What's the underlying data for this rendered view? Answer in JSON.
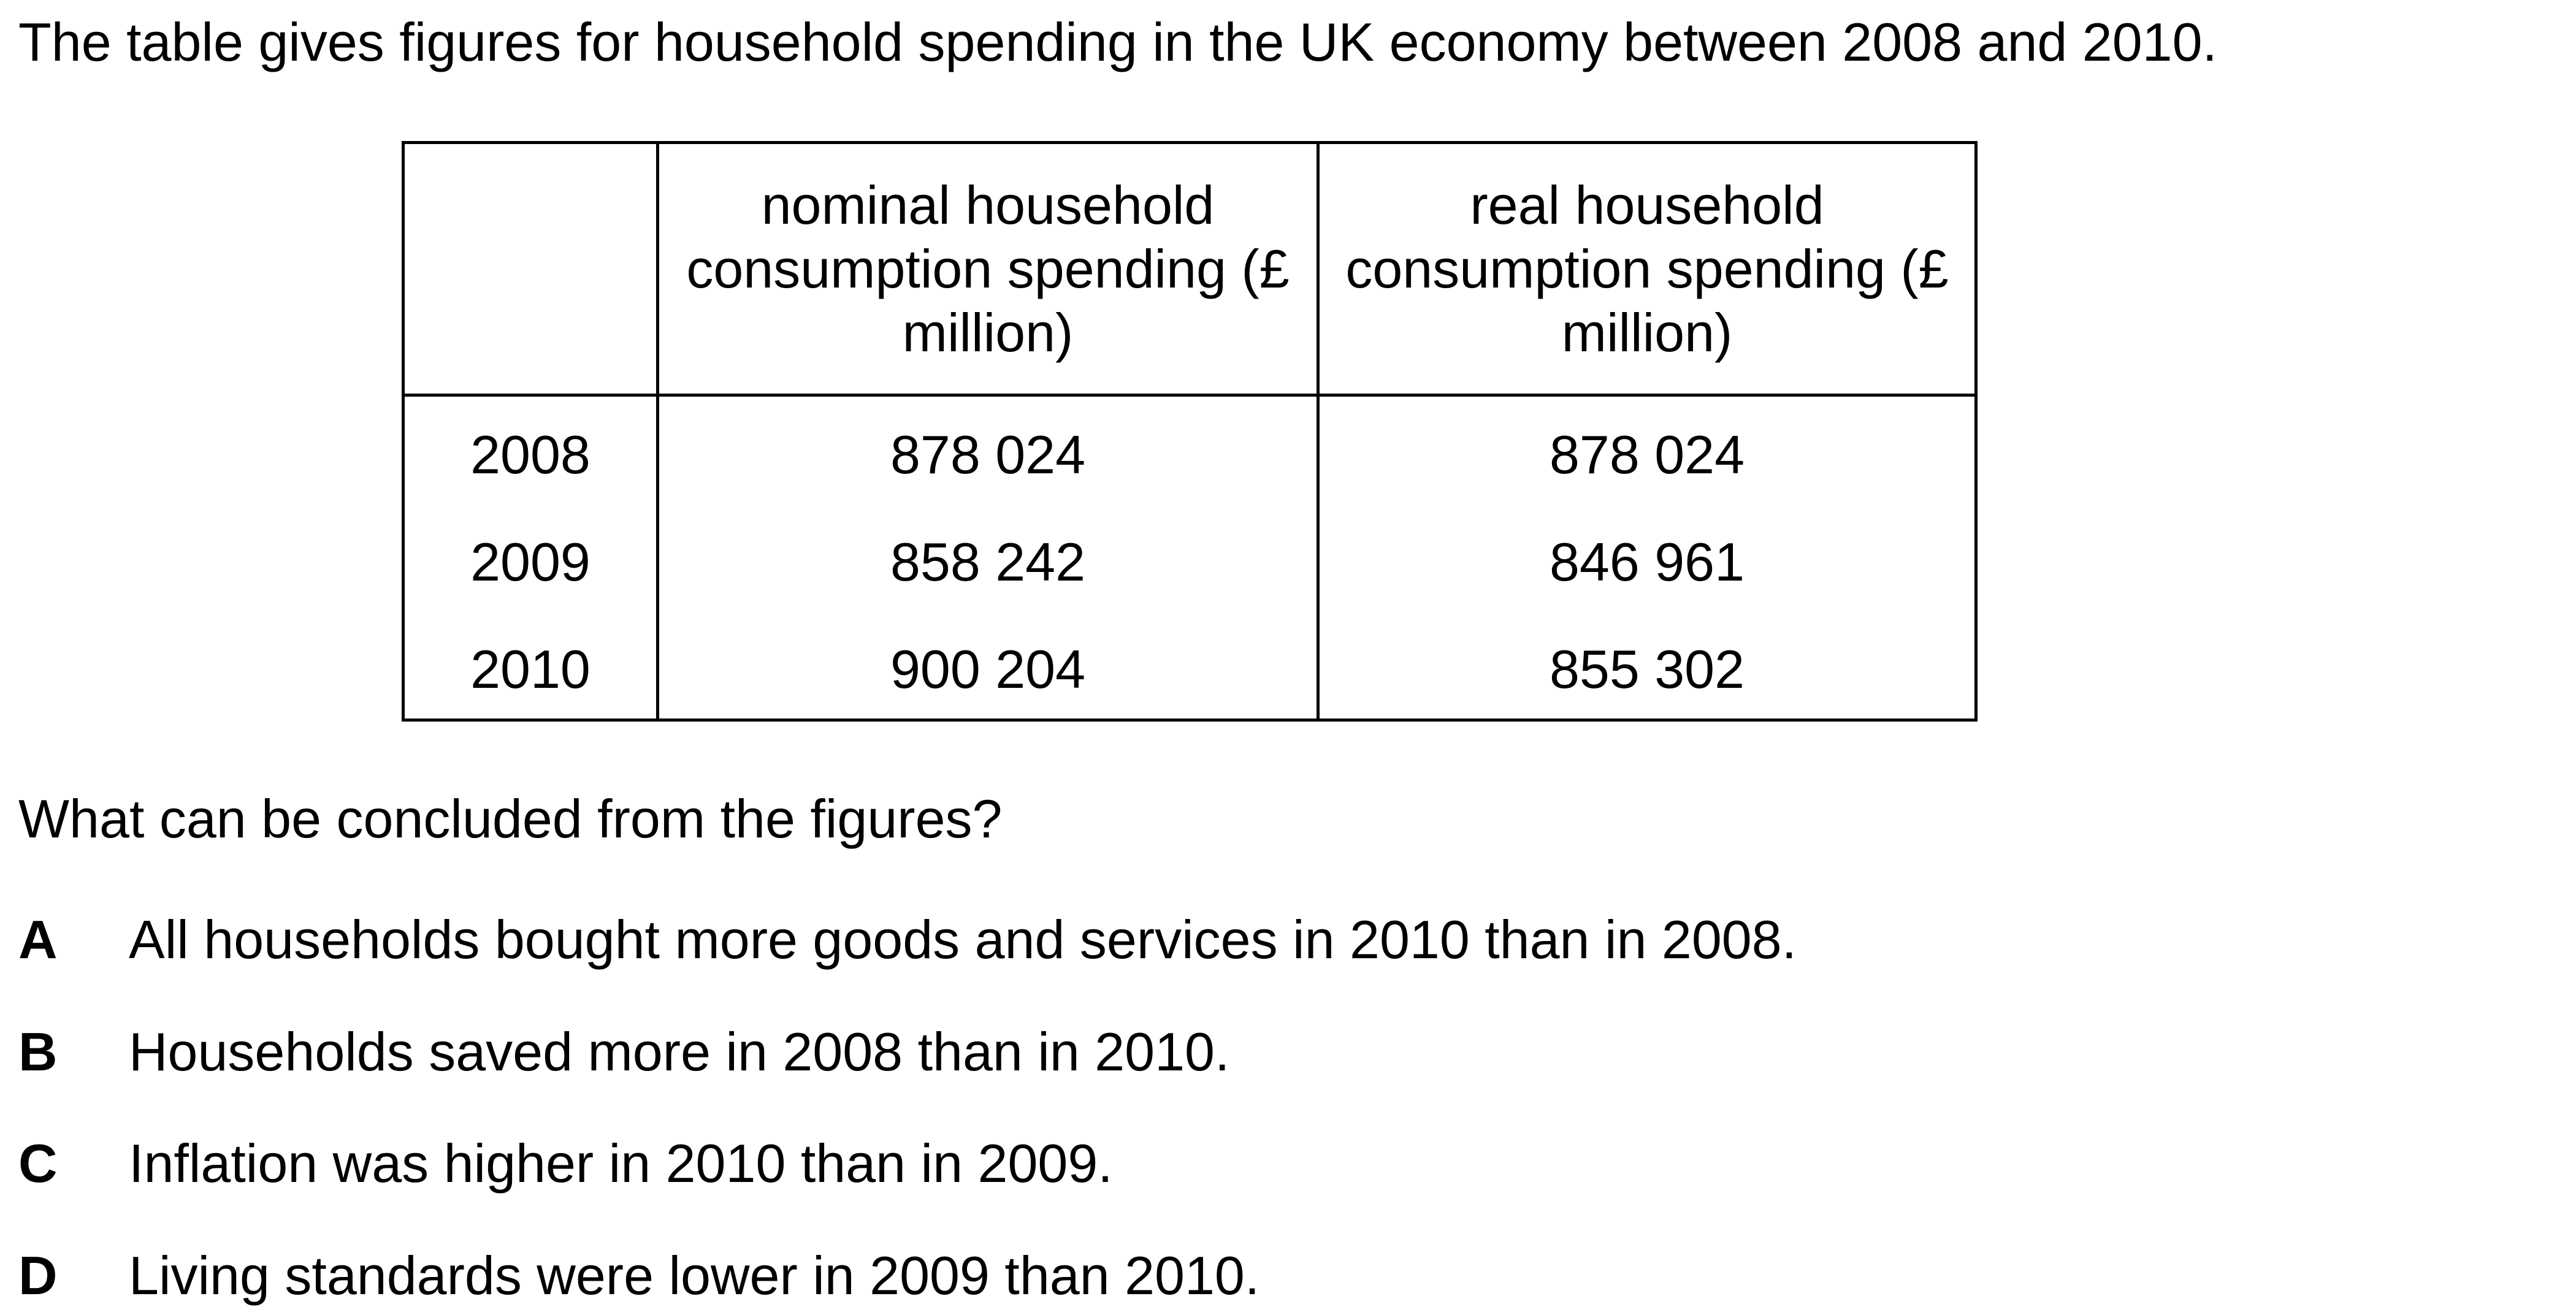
{
  "intro": "The table gives figures for household spending in the UK economy between 2008 and 2010.",
  "table": {
    "headers": [
      "",
      "nominal household consumption spending (£ million)",
      "real household consumption spending (£ million)"
    ],
    "rows": [
      {
        "year": "2008",
        "nominal": "878 024",
        "real": "878 024"
      },
      {
        "year": "2009",
        "nominal": "858 242",
        "real": "846 961"
      },
      {
        "year": "2010",
        "nominal": "900 204",
        "real": "855 302"
      }
    ]
  },
  "question": "What can be concluded from the figures?",
  "options": [
    {
      "letter": "A",
      "text": "All households bought more goods and services in 2010 than in 2008."
    },
    {
      "letter": "B",
      "text": "Households saved more in 2008 than in 2010."
    },
    {
      "letter": "C",
      "text": "Inflation was higher in 2010 than in 2009."
    },
    {
      "letter": "D",
      "text": "Living standards were lower in 2009 than 2010."
    }
  ]
}
